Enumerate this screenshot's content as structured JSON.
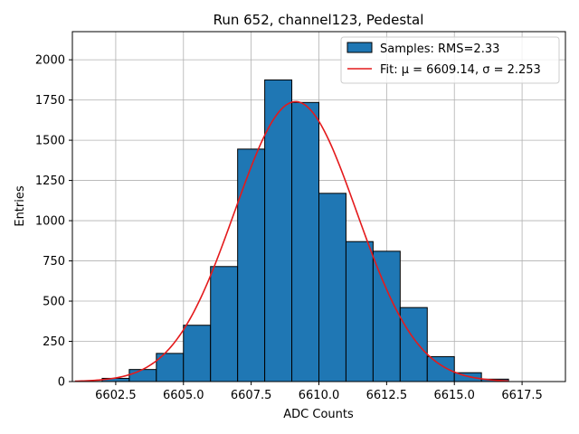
{
  "chart_data": {
    "type": "bar",
    "title": "Run 652, channel123, Pedestal",
    "xlabel": "ADC Counts",
    "ylabel": "Entries",
    "xlim": [
      6600.9,
      6619.1
    ],
    "ylim": [
      0,
      2175
    ],
    "grid": true,
    "legend_position": "top-right",
    "x_ticks": [
      "6602.5",
      "6605.0",
      "6607.5",
      "6610.0",
      "6612.5",
      "6615.0",
      "6617.5"
    ],
    "x_tick_values": [
      6602.5,
      6605.0,
      6607.5,
      6610.0,
      6612.5,
      6615.0,
      6617.5
    ],
    "y_ticks": [
      "0",
      "250",
      "500",
      "750",
      "1000",
      "1250",
      "1500",
      "1750",
      "2000"
    ],
    "y_tick_values": [
      0,
      250,
      500,
      750,
      1000,
      1250,
      1500,
      1750,
      2000
    ],
    "bin_edges": [
      6601,
      6602,
      6603,
      6604,
      6605,
      6606,
      6607,
      6608,
      6609,
      6610,
      6611,
      6612,
      6613,
      6614,
      6615,
      6616,
      6617,
      6618,
      6619
    ],
    "values": [
      1,
      20,
      75,
      175,
      350,
      715,
      1445,
      1875,
      1735,
      1170,
      870,
      810,
      460,
      155,
      55,
      15,
      0,
      0
    ],
    "series": [
      {
        "name": "Samples: RMS=2.33",
        "kind": "histogram",
        "color": "#1f77b4"
      },
      {
        "name": "Fit: μ = 6609.14, σ = 2.253",
        "kind": "gaussian",
        "color": "#e41a1c",
        "mu": 6609.14,
        "sigma": 2.253,
        "amplitude": 1740,
        "x_range": [
          6601,
          6617
        ]
      }
    ]
  }
}
